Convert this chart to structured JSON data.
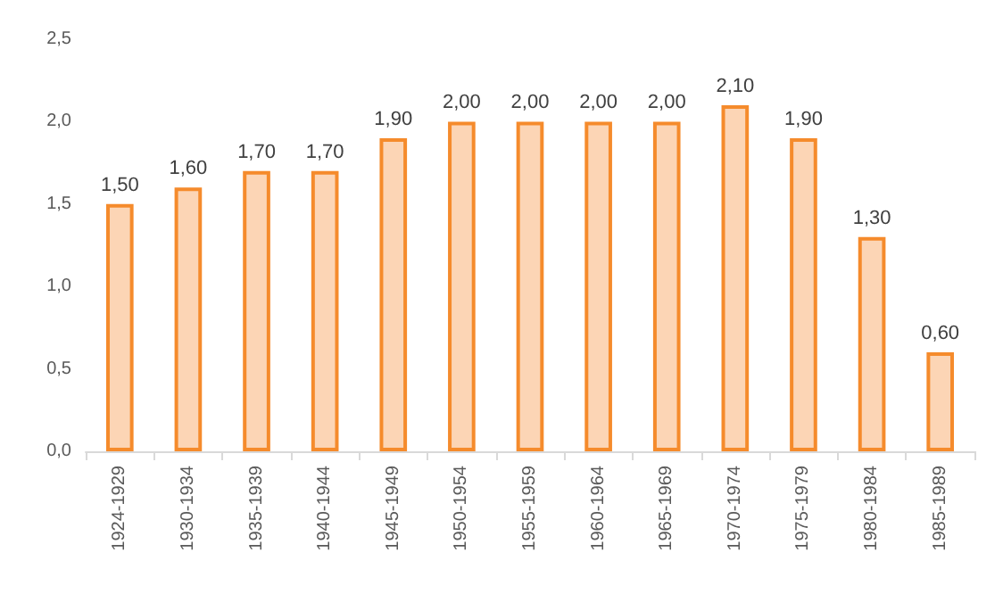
{
  "chart_data": {
    "type": "bar",
    "categories": [
      "1924-1929",
      "1930-1934",
      "1935-1939",
      "1940-1944",
      "1945-1949",
      "1950-1954",
      "1955-1959",
      "1960-1964",
      "1965-1969",
      "1970-1974",
      "1975-1979",
      "1980-1984",
      "1985-1989"
    ],
    "values": [
      1.5,
      1.6,
      1.7,
      1.7,
      1.9,
      2.0,
      2.0,
      2.0,
      2.0,
      2.1,
      1.9,
      1.3,
      0.6
    ],
    "value_labels": [
      "1,50",
      "1,60",
      "1,70",
      "1,70",
      "1,90",
      "2,00",
      "2,00",
      "2,00",
      "2,00",
      "2,10",
      "1,90",
      "1,30",
      "0,60"
    ],
    "color": "#fcd5b5",
    "ylim": [
      0,
      2.5
    ],
    "yticks": [
      {
        "value": 0,
        "label": "0,0"
      },
      {
        "value": 0.5,
        "label": "0,5"
      },
      {
        "value": 1,
        "label": "1,0"
      },
      {
        "value": 1.5,
        "label": "1,5"
      },
      {
        "value": 2,
        "label": "2,0"
      },
      {
        "value": 2.5,
        "label": "2,5"
      }
    ],
    "grid": false
  }
}
